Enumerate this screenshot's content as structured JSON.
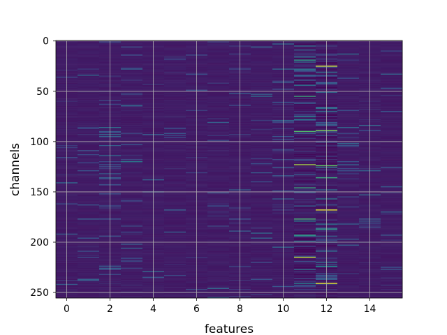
{
  "chart_data": {
    "type": "heatmap",
    "title": "",
    "xlabel": "features",
    "ylabel": "channels",
    "n_features": 16,
    "n_channels": 256,
    "xlim": [
      -0.5,
      15.5
    ],
    "ylim": [
      255.5,
      -0.5
    ],
    "y_inverted": true,
    "x_ticks": [
      0,
      2,
      4,
      6,
      8,
      10,
      12,
      14
    ],
    "y_ticks": [
      0,
      50,
      100,
      150,
      200,
      250
    ],
    "x_tick_labels": [
      "0",
      "2",
      "4",
      "6",
      "8",
      "10",
      "12",
      "14"
    ],
    "y_tick_labels": [
      "0",
      "50",
      "100",
      "150",
      "200",
      "250"
    ],
    "grid": true,
    "colormap": "viridis",
    "value_range": [
      0,
      1
    ],
    "background_level": 0.08,
    "feature_activity": [
      0.02,
      0.03,
      0.06,
      0.05,
      0.02,
      0.03,
      0.02,
      0.02,
      0.02,
      0.02,
      0.05,
      0.12,
      0.13,
      0.04,
      0.02,
      0.02
    ],
    "strong_cells": [
      {
        "feature": 11,
        "channel": 19,
        "value": 0.55
      },
      {
        "feature": 11,
        "channel": 55,
        "value": 0.6
      },
      {
        "feature": 11,
        "channel": 90,
        "value": 0.7
      },
      {
        "feature": 11,
        "channel": 123,
        "value": 0.85
      },
      {
        "feature": 11,
        "channel": 146,
        "value": 0.6
      },
      {
        "feature": 11,
        "channel": 177,
        "value": 0.65
      },
      {
        "feature": 11,
        "channel": 193,
        "value": 0.55
      },
      {
        "feature": 11,
        "channel": 215,
        "value": 0.9
      },
      {
        "feature": 12,
        "channel": 25,
        "value": 0.95
      },
      {
        "feature": 12,
        "channel": 89,
        "value": 0.8
      },
      {
        "feature": 12,
        "channel": 124,
        "value": 0.75
      },
      {
        "feature": 12,
        "channel": 136,
        "value": 0.6
      },
      {
        "feature": 12,
        "channel": 168,
        "value": 0.95
      },
      {
        "feature": 12,
        "channel": 187,
        "value": 0.55
      },
      {
        "feature": 12,
        "channel": 224,
        "value": 0.5
      },
      {
        "feature": 12,
        "channel": 241,
        "value": 0.95
      },
      {
        "feature": 3,
        "channel": 120,
        "value": 0.4
      },
      {
        "feature": 2,
        "channel": 86,
        "value": 0.35
      },
      {
        "feature": 13,
        "channel": 13,
        "value": 0.35
      }
    ]
  }
}
